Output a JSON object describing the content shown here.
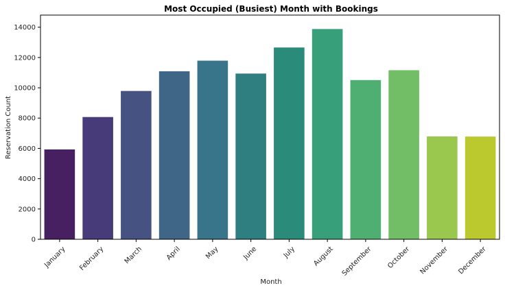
{
  "chart_data": {
    "type": "bar",
    "title": "Most Occupied (Busiest) Month with Bookings",
    "xlabel": "Month",
    "ylabel": "Reservation Count",
    "categories": [
      "January",
      "February",
      "March",
      "April",
      "May",
      "June",
      "July",
      "August",
      "September",
      "October",
      "November",
      "December"
    ],
    "values": [
      5930,
      8070,
      9790,
      11090,
      11790,
      10940,
      12660,
      13880,
      10510,
      11160,
      6790,
      6780
    ],
    "ylim": [
      0,
      14800
    ],
    "yticks": [
      0,
      2000,
      4000,
      6000,
      8000,
      10000,
      12000,
      14000
    ],
    "grid": false,
    "legend": "none",
    "colors": [
      "#472061",
      "#483b7a",
      "#465282",
      "#3f6587",
      "#38758a",
      "#2f7f81",
      "#2b8b7b",
      "#37a07a",
      "#4fae72",
      "#72be67",
      "#9ac84f",
      "#bbc82e"
    ]
  }
}
